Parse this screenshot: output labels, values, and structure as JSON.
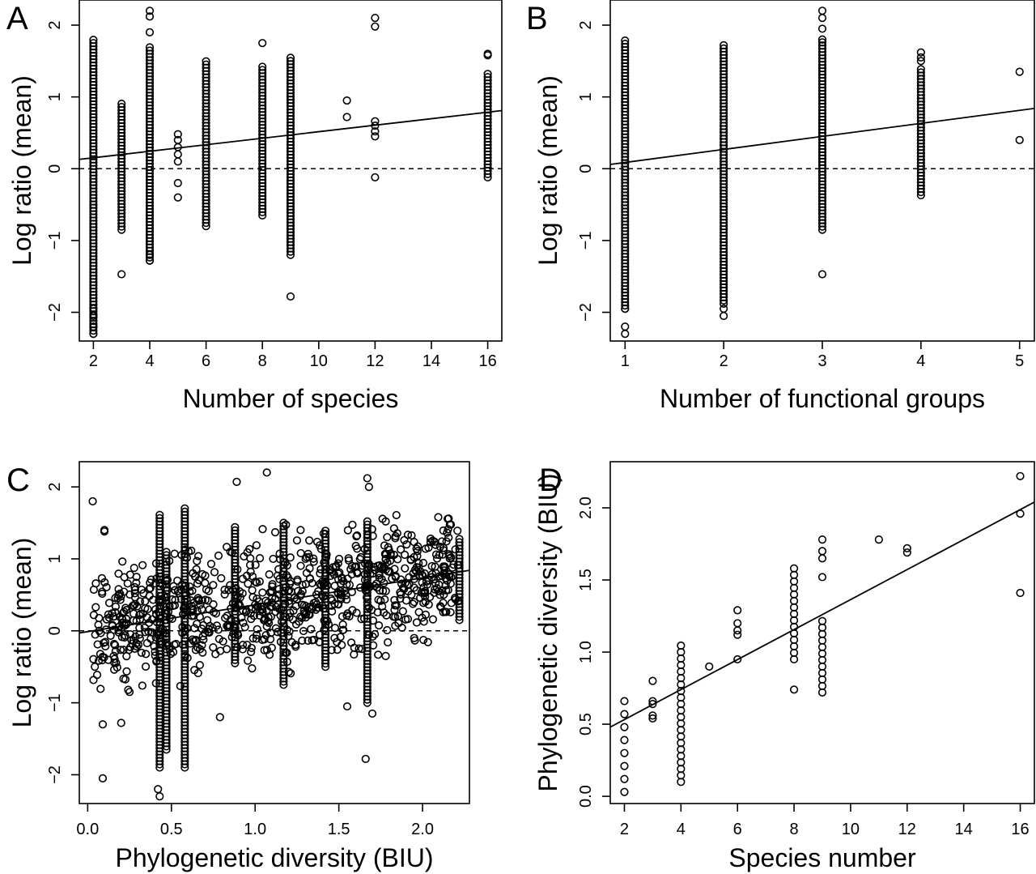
{
  "chart_data": [
    {
      "panel": "A",
      "type": "scatter",
      "xlabel": "Number of species",
      "ylabel": "Log ratio (mean)",
      "xlim": [
        1.5,
        16.5
      ],
      "ylim": [
        -2.4,
        2.35
      ],
      "xticks": [
        2,
        4,
        6,
        8,
        10,
        12,
        14,
        16
      ],
      "yticks": [
        -2,
        -1,
        0,
        1,
        2
      ],
      "grid": false,
      "reference_line": {
        "y": 0,
        "style": "dashed"
      },
      "fit_line": {
        "x": [
          1.5,
          16.5
        ],
        "y": [
          0.13,
          0.81
        ]
      },
      "columns": [
        {
          "x": 2,
          "min": -2.3,
          "max": 1.82,
          "dense": true
        },
        {
          "x": 3,
          "min": -0.85,
          "max": 0.92,
          "dense": true
        },
        {
          "x": 4,
          "min": -1.28,
          "max": 1.72,
          "dense": true
        },
        {
          "x": 6,
          "min": -0.8,
          "max": 1.5,
          "dense": true
        },
        {
          "x": 8,
          "min": -0.65,
          "max": 1.42,
          "dense": true
        },
        {
          "x": 9,
          "min": -1.2,
          "max": 1.58,
          "dense": true
        },
        {
          "x": 16,
          "min": -0.12,
          "max": 1.32,
          "dense": true
        }
      ],
      "points": [
        [
          2,
          -2.3
        ],
        [
          2,
          -2.2
        ],
        [
          2,
          -2.05
        ],
        [
          2,
          -1.95
        ],
        [
          3,
          -1.47
        ],
        [
          4,
          -1.28
        ],
        [
          4,
          -1.2
        ],
        [
          4,
          2.2
        ],
        [
          4,
          2.12
        ],
        [
          4,
          1.9
        ],
        [
          5,
          0.48
        ],
        [
          5,
          0.4
        ],
        [
          5,
          0.3
        ],
        [
          5,
          0.2
        ],
        [
          5,
          0.1
        ],
        [
          5,
          -0.2
        ],
        [
          5,
          -0.4
        ],
        [
          8,
          1.75
        ],
        [
          9,
          -1.78
        ],
        [
          11,
          0.95
        ],
        [
          11,
          0.72
        ],
        [
          12,
          2.1
        ],
        [
          12,
          1.98
        ],
        [
          12,
          0.66
        ],
        [
          12,
          0.6
        ],
        [
          12,
          0.52
        ],
        [
          12,
          0.45
        ],
        [
          12,
          -0.12
        ],
        [
          16,
          1.6
        ],
        [
          16,
          1.58
        ]
      ]
    },
    {
      "panel": "B",
      "type": "scatter",
      "xlabel": "Number of functional groups",
      "ylabel": "Log ratio (mean)",
      "xlim": [
        0.85,
        5.15
      ],
      "ylim": [
        -2.4,
        2.35
      ],
      "xticks": [
        1,
        2,
        3,
        4,
        5
      ],
      "yticks": [
        -2,
        -1,
        0,
        1,
        2
      ],
      "grid": false,
      "reference_line": {
        "y": 0,
        "style": "dashed"
      },
      "fit_line": {
        "x": [
          0.85,
          5.15
        ],
        "y": [
          0.06,
          0.84
        ]
      },
      "columns": [
        {
          "x": 1,
          "min": -1.95,
          "max": 1.82,
          "dense": true
        },
        {
          "x": 2,
          "min": -1.88,
          "max": 1.75,
          "dense": true
        },
        {
          "x": 3,
          "min": -0.85,
          "max": 1.8,
          "dense": true
        },
        {
          "x": 4,
          "min": -0.37,
          "max": 1.4,
          "dense": true
        }
      ],
      "points": [
        [
          1,
          -2.2
        ],
        [
          1,
          -2.3
        ],
        [
          1,
          -1.95
        ],
        [
          2,
          -2.05
        ],
        [
          2,
          -1.95
        ],
        [
          3,
          -1.47
        ],
        [
          3,
          2.2
        ],
        [
          3,
          2.1
        ],
        [
          3,
          1.95
        ],
        [
          3,
          1.8
        ],
        [
          4,
          1.62
        ],
        [
          4,
          1.55
        ],
        [
          4,
          1.5
        ],
        [
          5,
          1.35
        ],
        [
          5,
          0.4
        ]
      ]
    },
    {
      "panel": "C",
      "type": "scatter",
      "xlabel": "Phylogenetic diversity (BIU)",
      "ylabel": "Log ratio (mean)",
      "xlim": [
        -0.05,
        2.28
      ],
      "ylim": [
        -2.4,
        2.35
      ],
      "xticks": [
        0.0,
        0.5,
        1.0,
        1.5,
        2.0
      ],
      "xticklabels": [
        "0.0",
        "0.5",
        "1.0",
        "1.5",
        "2.0"
      ],
      "yticks": [
        -2,
        -1,
        0,
        1,
        2
      ],
      "grid": false,
      "reference_line": {
        "y": 0,
        "style": "dashed"
      },
      "fit_line": {
        "x": [
          -0.05,
          2.28
        ],
        "y": [
          -0.03,
          0.84
        ]
      },
      "columns": [
        {
          "x": 0.43,
          "min": -1.9,
          "max": 1.65,
          "dense": true
        },
        {
          "x": 0.47,
          "min": -1.65,
          "max": 1.1,
          "dense": true
        },
        {
          "x": 0.58,
          "min": -1.9,
          "max": 1.7,
          "dense": true
        },
        {
          "x": 0.88,
          "min": -0.45,
          "max": 1.45,
          "dense": true
        },
        {
          "x": 1.17,
          "min": -0.75,
          "max": 1.5,
          "dense": true
        },
        {
          "x": 1.42,
          "min": -0.5,
          "max": 1.4,
          "dense": true
        },
        {
          "x": 1.67,
          "min": -1.0,
          "max": 1.55,
          "dense": true
        },
        {
          "x": 2.22,
          "min": 0.15,
          "max": 1.3,
          "dense": true
        }
      ],
      "points": [
        [
          0.03,
          1.8
        ],
        [
          0.09,
          -2.05
        ],
        [
          0.1,
          1.4
        ],
        [
          0.1,
          1.38
        ],
        [
          0.09,
          -1.3
        ],
        [
          0.42,
          -2.2
        ],
        [
          0.43,
          -2.3
        ],
        [
          1.07,
          2.2
        ],
        [
          0.89,
          2.07
        ],
        [
          1.67,
          2.12
        ],
        [
          1.68,
          2.0
        ],
        [
          0.79,
          -1.2
        ],
        [
          1.55,
          -1.05
        ],
        [
          1.66,
          -1.78
        ],
        [
          1.7,
          -1.15
        ],
        [
          0.25,
          -0.85
        ],
        [
          0.2,
          -1.28
        ],
        [
          1.95,
          -0.1
        ],
        [
          1.95,
          0.72
        ],
        [
          1.95,
          0.6
        ],
        [
          1.95,
          0.4
        ],
        [
          1.78,
          1.52
        ],
        [
          1.78,
          1.0
        ],
        [
          1.78,
          -0.35
        ]
      ],
      "scatter_cloud": {
        "x_range": [
          0.03,
          2.22
        ],
        "y_center": "fit_line",
        "y_spread": 0.5,
        "count": 900
      }
    },
    {
      "panel": "D",
      "type": "scatter",
      "xlabel": "Species number",
      "ylabel": "Phylogenetic diversity (BIU)",
      "xlim": [
        1.5,
        16.5
      ],
      "ylim": [
        -0.05,
        2.32
      ],
      "xticks": [
        2,
        4,
        6,
        8,
        10,
        12,
        14,
        16
      ],
      "yticks": [
        0.0,
        0.5,
        1.0,
        1.5,
        2.0
      ],
      "yticklabels": [
        "0.0",
        "0.5",
        "1.0",
        "1.5",
        "2.0"
      ],
      "grid": false,
      "fit_line": {
        "x": [
          1.5,
          16.5
        ],
        "y": [
          0.48,
          2.04
        ]
      },
      "columns": [
        {
          "x": 2,
          "min": 0.03,
          "max": 0.66,
          "dense": false
        },
        {
          "x": 4,
          "min": 0.1,
          "max": 1.07,
          "dense": true
        },
        {
          "x": 8,
          "min": 0.95,
          "max": 1.62,
          "dense": true
        },
        {
          "x": 9,
          "min": 0.72,
          "max": 1.22,
          "dense": true
        }
      ],
      "points": [
        [
          3,
          0.8
        ],
        [
          3,
          0.66
        ],
        [
          3,
          0.64
        ],
        [
          3,
          0.56
        ],
        [
          3,
          0.54
        ],
        [
          5,
          0.9
        ],
        [
          6,
          1.29
        ],
        [
          6,
          1.2
        ],
        [
          6,
          1.15
        ],
        [
          6,
          1.12
        ],
        [
          6,
          0.95
        ],
        [
          8,
          0.74
        ],
        [
          9,
          1.78
        ],
        [
          9,
          1.7
        ],
        [
          9,
          1.65
        ],
        [
          9,
          1.52
        ],
        [
          11,
          1.78
        ],
        [
          12,
          1.72
        ],
        [
          12,
          1.69
        ],
        [
          16,
          2.22
        ],
        [
          16,
          1.96
        ],
        [
          16,
          1.41
        ]
      ]
    }
  ]
}
